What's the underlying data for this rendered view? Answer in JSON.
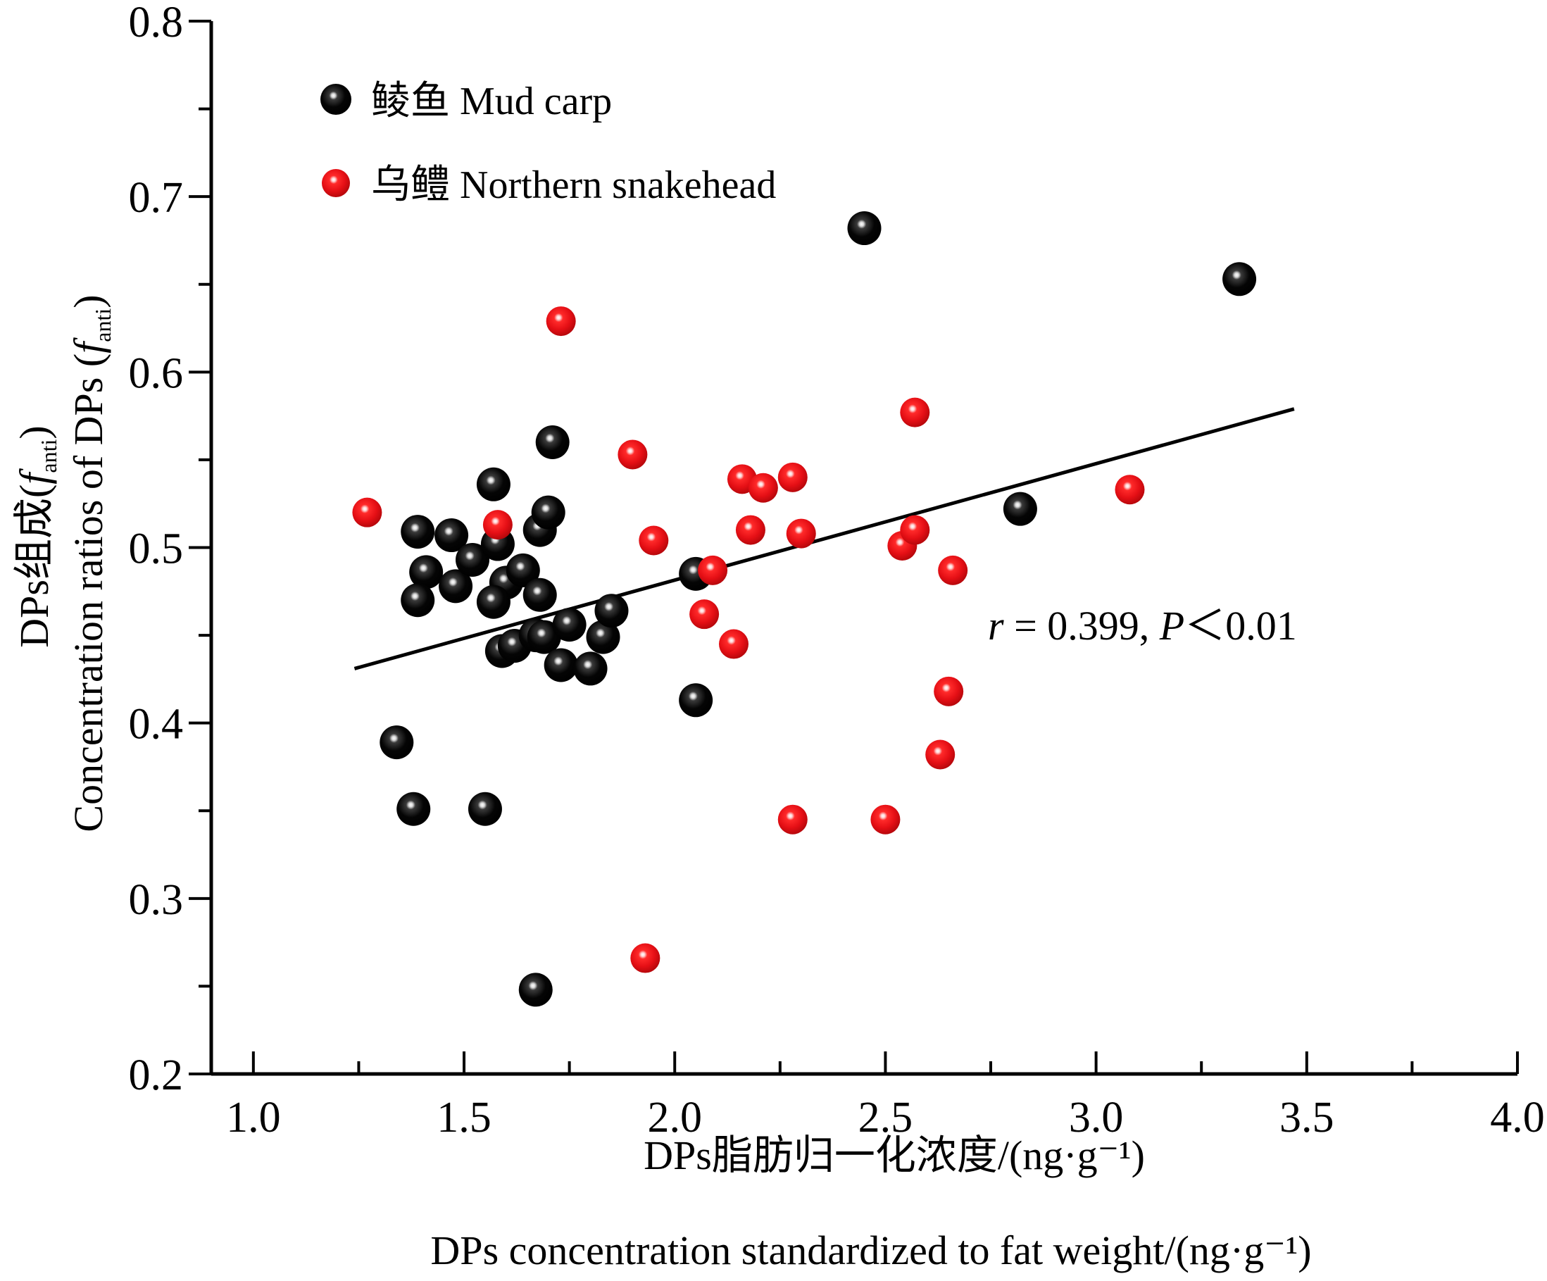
{
  "chart_data": {
    "type": "scatter",
    "xlabel_zh": "DPs脂肪归一化浓度/(ng·g⁻¹)",
    "xlabel_en": "DPs concentration standardized to fat weight/(ng·g⁻¹)",
    "ylabel_zh_prefix": "DPs组成(",
    "ylabel_en_prefix": "Concentration ratios of DPs (",
    "ylabel_f": "f",
    "ylabel_sub": "anti",
    "ylabel_close": ")",
    "xlim": [
      0.9,
      4.0
    ],
    "ylim": [
      0.2,
      0.8
    ],
    "xticks": [
      "1.0",
      "1.5",
      "2.0",
      "2.5",
      "3.0",
      "3.5",
      "4.0"
    ],
    "yticks": [
      "0.2",
      "0.3",
      "0.4",
      "0.5",
      "0.6",
      "0.7",
      "0.8"
    ],
    "grid": false,
    "legend_position": "top-left",
    "series": [
      {
        "name": "鲮鱼 Mud carp",
        "color": "#111111",
        "points": [
          [
            1.39,
            0.509
          ],
          [
            1.47,
            0.507
          ],
          [
            1.41,
            0.486
          ],
          [
            1.39,
            0.47
          ],
          [
            1.48,
            0.478
          ],
          [
            1.52,
            0.493
          ],
          [
            1.57,
            0.536
          ],
          [
            1.58,
            0.502
          ],
          [
            1.6,
            0.48
          ],
          [
            1.57,
            0.469
          ],
          [
            1.64,
            0.487
          ],
          [
            1.68,
            0.51
          ],
          [
            1.7,
            0.52
          ],
          [
            1.68,
            0.473
          ],
          [
            1.71,
            0.56
          ],
          [
            1.59,
            0.441
          ],
          [
            1.62,
            0.444
          ],
          [
            1.67,
            0.45
          ],
          [
            1.69,
            0.449
          ],
          [
            1.73,
            0.433
          ],
          [
            1.75,
            0.456
          ],
          [
            1.8,
            0.431
          ],
          [
            1.83,
            0.449
          ],
          [
            1.85,
            0.464
          ],
          [
            2.05,
            0.485
          ],
          [
            2.05,
            0.413
          ],
          [
            1.34,
            0.389
          ],
          [
            1.38,
            0.351
          ],
          [
            1.55,
            0.351
          ],
          [
            1.67,
            0.248
          ],
          [
            2.45,
            0.682
          ],
          [
            2.82,
            0.522
          ],
          [
            3.34,
            0.653
          ]
        ]
      },
      {
        "name": "乌鳢 Northern snakehead",
        "color": "#e8141a",
        "points": [
          [
            1.27,
            0.52
          ],
          [
            1.58,
            0.513
          ],
          [
            1.73,
            0.629
          ],
          [
            1.9,
            0.553
          ],
          [
            1.95,
            0.504
          ],
          [
            1.93,
            0.266
          ],
          [
            2.07,
            0.462
          ],
          [
            2.09,
            0.487
          ],
          [
            2.14,
            0.445
          ],
          [
            2.16,
            0.539
          ],
          [
            2.18,
            0.51
          ],
          [
            2.21,
            0.534
          ],
          [
            2.28,
            0.54
          ],
          [
            2.3,
            0.508
          ],
          [
            2.28,
            0.345
          ],
          [
            2.5,
            0.345
          ],
          [
            2.54,
            0.501
          ],
          [
            2.57,
            0.577
          ],
          [
            2.57,
            0.51
          ],
          [
            2.63,
            0.382
          ],
          [
            2.65,
            0.418
          ],
          [
            2.66,
            0.487
          ],
          [
            3.08,
            0.533
          ]
        ]
      }
    ],
    "fit_line": {
      "x": [
        1.24,
        3.47
      ],
      "y": [
        0.431,
        0.579
      ]
    },
    "annotation": {
      "r_symbol": "r",
      "r_text": " = 0.399, ",
      "p_symbol": "P",
      "p_text": "＜0.01"
    }
  }
}
